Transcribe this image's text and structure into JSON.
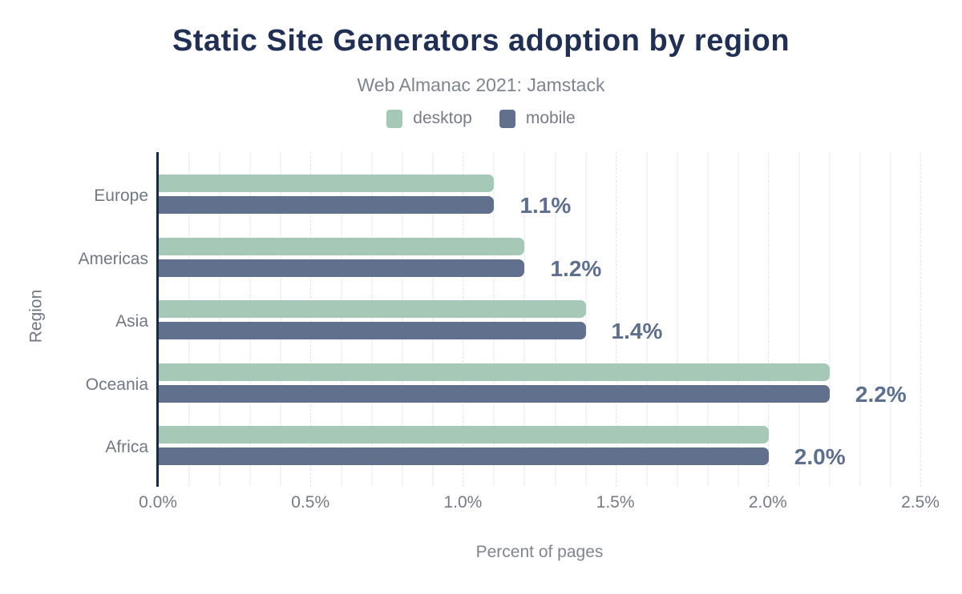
{
  "title": "Static Site Generators adoption by region",
  "subtitle": "Web Almanac 2021: Jamstack",
  "legend": [
    {
      "label": "desktop",
      "color": "#a5c9b6"
    },
    {
      "label": "mobile",
      "color": "#61708d"
    }
  ],
  "chart_data": {
    "type": "bar",
    "orientation": "horizontal",
    "title": "Static Site Generators adoption by region",
    "subtitle": "Web Almanac 2021: Jamstack",
    "categories": [
      "Europe",
      "Americas",
      "Asia",
      "Oceania",
      "Africa"
    ],
    "series": [
      {
        "name": "desktop",
        "color": "#a5c9b6",
        "values": [
          1.1,
          1.2,
          1.4,
          2.2,
          2.0
        ]
      },
      {
        "name": "mobile",
        "color": "#61708d",
        "values": [
          1.1,
          1.2,
          1.4,
          2.2,
          2.0
        ]
      }
    ],
    "data_labels": [
      "1.1%",
      "1.2%",
      "1.4%",
      "2.2%",
      "2.0%"
    ],
    "xlabel": "Percent of pages",
    "ylabel": "Region",
    "xlim": [
      0,
      2.5
    ],
    "xticks": [
      {
        "value": 0.0,
        "label": "0.0%"
      },
      {
        "value": 0.5,
        "label": "0.5%"
      },
      {
        "value": 1.0,
        "label": "1.0%"
      },
      {
        "value": 1.5,
        "label": "1.5%"
      },
      {
        "value": 2.0,
        "label": "2.0%"
      },
      {
        "value": 2.5,
        "label": "2.5%"
      }
    ],
    "grid": {
      "minor_step": 0.1,
      "major_step": 0.5,
      "direction": "vertical"
    },
    "legend_position": "top"
  },
  "colors": {
    "title": "#1f3054",
    "subtitle": "#7e848e",
    "axis_line": "#16294a",
    "axis_text": "#717883",
    "data_label": "#5d6f8e",
    "desktop": "#a5c9b6",
    "mobile": "#61708d"
  }
}
